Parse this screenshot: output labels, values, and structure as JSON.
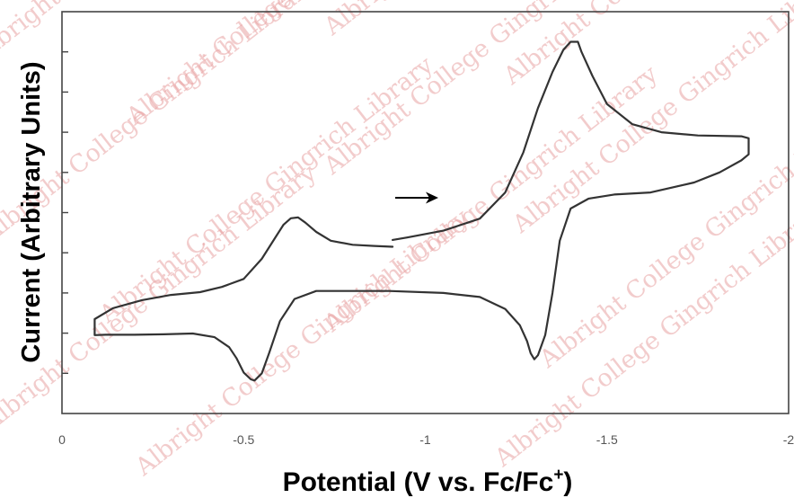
{
  "chart_data": {
    "type": "line",
    "title": "",
    "xlabel_main": "Potential (V vs. Fc/Fc",
    "xlabel_sup": "+",
    "xlabel_end": ")",
    "ylabel": "Current (Arbitrary Units)",
    "xlim": [
      0,
      -2
    ],
    "ylim": [
      0,
      10
    ],
    "x_ticks": [
      {
        "value": 0,
        "label": "0"
      },
      {
        "value": -0.5,
        "label": "-0.5"
      },
      {
        "value": -1,
        "label": "-1"
      },
      {
        "value": -1.5,
        "label": "-1.5"
      },
      {
        "value": -2,
        "label": "-2"
      }
    ],
    "y_tick_values": [
      1,
      2,
      3,
      4,
      5,
      6,
      7,
      8,
      9
    ],
    "grid": false,
    "legend": "none",
    "line_color": "#333333",
    "annotation": {
      "type": "arrow",
      "meaning": "initial scan direction"
    },
    "watermark_text": "Albright College Gingrich Library",
    "series": [
      {
        "x": [
          -0.91,
          -0.86,
          -0.8,
          -0.74,
          -0.7,
          -0.67,
          -0.65,
          -0.63,
          -0.61,
          -0.59,
          -0.55,
          -0.5,
          -0.44,
          -0.38,
          -0.3,
          -0.22,
          -0.14,
          -0.09,
          -0.09,
          -0.12,
          -0.2,
          -0.28,
          -0.36,
          -0.42,
          -0.46,
          -0.48,
          -0.5,
          -0.52,
          -0.53,
          -0.55,
          -0.57,
          -0.6,
          -0.64,
          -0.7,
          -0.78,
          -0.9,
          -1.05,
          -1.15,
          -1.22,
          -1.26,
          -1.28,
          -1.29,
          -1.3,
          -1.31,
          -1.33,
          -1.35,
          -1.37,
          -1.4,
          -1.45,
          -1.52,
          -1.62,
          -1.74,
          -1.81,
          -1.87,
          -1.89,
          -1.89,
          -1.87,
          -1.75,
          -1.65,
          -1.57,
          -1.5,
          -1.46,
          -1.43,
          -1.42,
          -1.4,
          -1.38,
          -1.35,
          -1.31,
          -1.27,
          -1.22,
          -1.15,
          -1.05,
          -0.95,
          -0.91
        ],
        "y": [
          4.15,
          4.17,
          4.2,
          4.3,
          4.52,
          4.75,
          4.88,
          4.86,
          4.7,
          4.42,
          3.85,
          3.35,
          3.15,
          3.02,
          2.95,
          2.82,
          2.62,
          2.35,
          1.95,
          1.96,
          1.96,
          1.97,
          1.99,
          1.9,
          1.65,
          1.38,
          1.02,
          0.85,
          0.82,
          1.0,
          1.5,
          2.3,
          2.85,
          3.05,
          3.05,
          3.05,
          3.0,
          2.9,
          2.6,
          2.2,
          1.8,
          1.5,
          1.35,
          1.45,
          1.95,
          3.0,
          4.3,
          5.1,
          5.35,
          5.45,
          5.5,
          5.75,
          6.0,
          6.3,
          6.45,
          6.85,
          6.9,
          6.92,
          7.0,
          7.2,
          7.7,
          8.4,
          9.0,
          9.25,
          9.25,
          9.05,
          8.5,
          7.6,
          6.5,
          5.5,
          4.85,
          4.55,
          4.38,
          4.32
        ]
      }
    ]
  }
}
